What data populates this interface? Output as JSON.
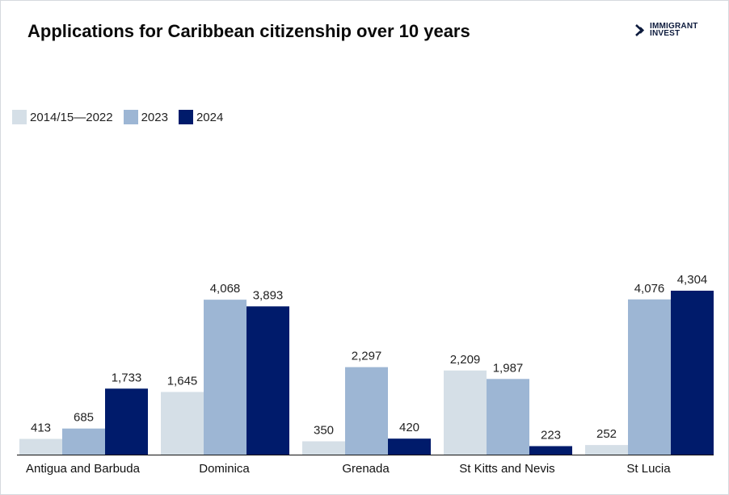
{
  "header": {
    "title": "Applications for Caribbean citizenship over 10 years",
    "logo_line1": "IMMIGRANT",
    "logo_line2": "INVEST"
  },
  "colors": {
    "series_2014_2022": "#d5dfe7",
    "series_2023": "#9db6d4",
    "series_2024": "#001b6b",
    "axis": "#111111",
    "logo": "#0d1b3d"
  },
  "chart_data": {
    "type": "bar",
    "title": "Applications for Caribbean citizenship over 10 years",
    "xlabel": "",
    "ylabel": "",
    "ylim": [
      0,
      5000
    ],
    "grid": false,
    "legend_position": "top-left",
    "categories": [
      "Antigua and Barbuda",
      "Dominica",
      "Grenada",
      "St Kitts and Nevis",
      "St Lucia"
    ],
    "series": [
      {
        "name": "2014/15—2022",
        "color": "#d5dfe7",
        "values": [
          413,
          1645,
          350,
          2209,
          252
        ],
        "labels": [
          "413",
          "1,645",
          "350",
          "2,209",
          "252"
        ]
      },
      {
        "name": "2023",
        "color": "#9db6d4",
        "values": [
          685,
          4068,
          2297,
          1987,
          4076
        ],
        "labels": [
          "685",
          "4,068",
          "2,297",
          "1,987",
          "4,076"
        ]
      },
      {
        "name": "2024",
        "color": "#001b6b",
        "values": [
          1733,
          3893,
          420,
          223,
          4304
        ],
        "labels": [
          "1,733",
          "3,893",
          "420",
          "223",
          "4,304"
        ]
      }
    ]
  }
}
